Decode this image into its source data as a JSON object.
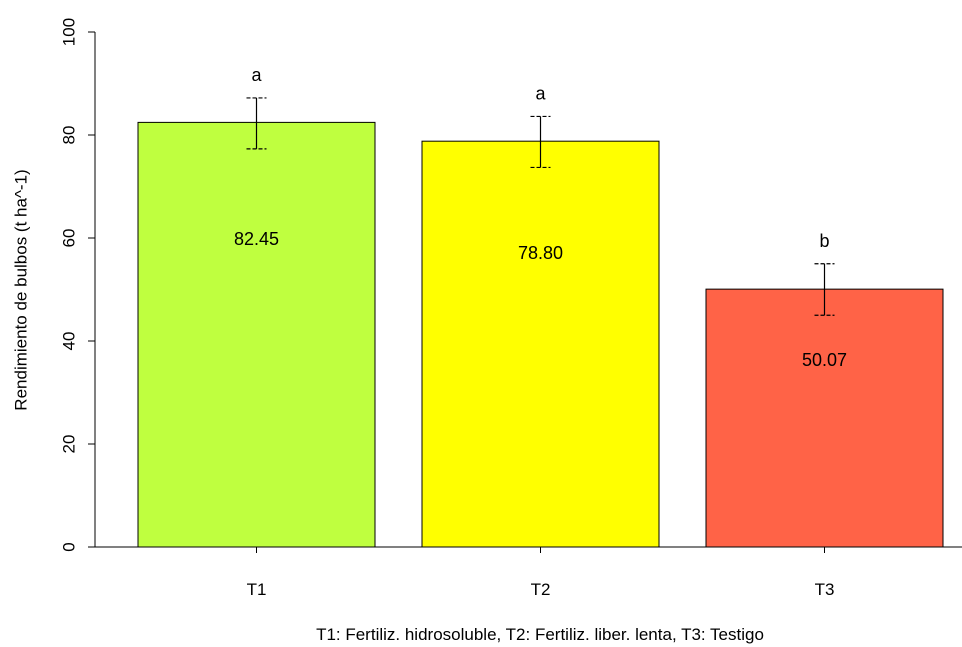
{
  "chart_data": {
    "type": "bar",
    "categories": [
      "T1",
      "T2",
      "T3"
    ],
    "values": [
      82.45,
      78.8,
      50.07
    ],
    "value_labels": [
      "82.45",
      "78.80",
      "50.07"
    ],
    "error_bars": [
      {
        "low": 77.3,
        "high": 87.2
      },
      {
        "low": 73.7,
        "high": 83.6
      },
      {
        "low": 45.0,
        "high": 55.0
      }
    ],
    "significance_letters": [
      "a",
      "a",
      "b"
    ],
    "colors": [
      "#bfff3f",
      "#ffff00",
      "#ff6347"
    ],
    "title": "",
    "xlabel": "T1: Fertiliz. hidrosoluble, T2: Fertiliz. liber. lenta, T3: Testigo",
    "ylabel": "Rendimiento de bulbos (t ha^-1)",
    "ylim": [
      0,
      100
    ],
    "yticks": [
      0,
      20,
      40,
      60,
      80,
      100
    ],
    "grid": false,
    "legend": "none"
  }
}
